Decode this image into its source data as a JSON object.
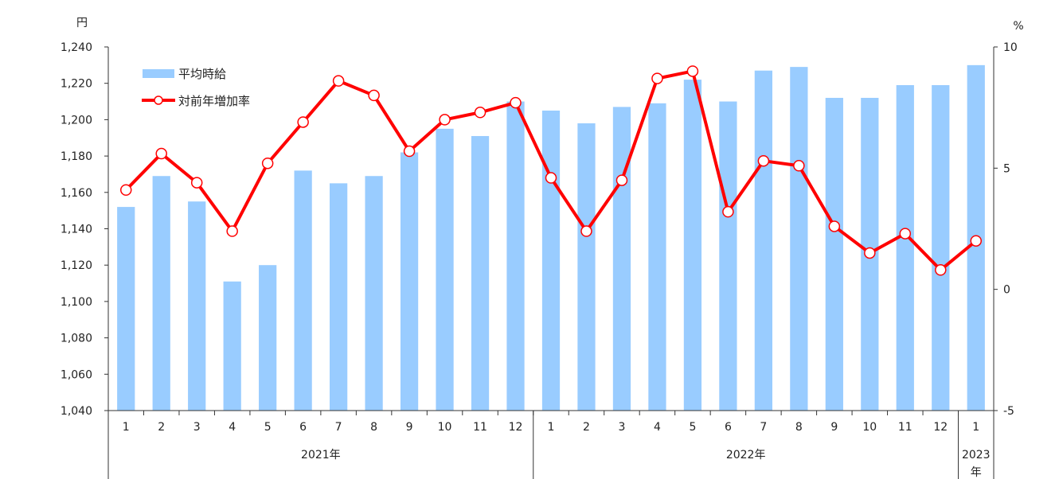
{
  "chart_data": {
    "type": "bar+line",
    "left_axis_unit": "円",
    "right_axis_unit": "%",
    "left_ylim": [
      1040,
      1240
    ],
    "left_ticks": [
      "1,040",
      "1,060",
      "1,080",
      "1,100",
      "1,120",
      "1,140",
      "1,160",
      "1,180",
      "1,200",
      "1,220",
      "1,240"
    ],
    "right_ylim": [
      -5,
      10
    ],
    "right_ticks": [
      "-5",
      "0",
      "5",
      "10"
    ],
    "categories": [
      "1",
      "2",
      "3",
      "4",
      "5",
      "6",
      "7",
      "8",
      "9",
      "10",
      "11",
      "12",
      "1",
      "2",
      "3",
      "4",
      "5",
      "6",
      "7",
      "8",
      "9",
      "10",
      "11",
      "12",
      "1"
    ],
    "year_groups": [
      {
        "label": "2021年",
        "start": 0,
        "count": 12
      },
      {
        "label": "2022年",
        "start": 12,
        "count": 12
      },
      {
        "label": "2023\n年",
        "start": 24,
        "count": 1
      }
    ],
    "series": [
      {
        "name": "平均時給",
        "kind": "bar",
        "axis": "left",
        "color": "#99ccff",
        "values": [
          1152,
          1169,
          1155,
          1111,
          1120,
          1172,
          1165,
          1169,
          1182,
          1195,
          1191,
          1210,
          1205,
          1198,
          1207,
          1209,
          1222,
          1210,
          1227,
          1229,
          1212,
          1212,
          1219,
          1219,
          1230
        ]
      },
      {
        "name": "対前年増加率",
        "kind": "line",
        "axis": "right",
        "color": "#ff0000",
        "values": [
          4.1,
          5.6,
          4.4,
          2.4,
          5.2,
          6.9,
          8.6,
          8.0,
          5.7,
          7.0,
          7.3,
          7.7,
          4.6,
          2.4,
          4.5,
          8.7,
          9.0,
          3.2,
          5.3,
          5.1,
          2.6,
          1.5,
          2.3,
          0.8,
          2.0
        ]
      }
    ],
    "grid": false,
    "legend_position": "top-left"
  }
}
